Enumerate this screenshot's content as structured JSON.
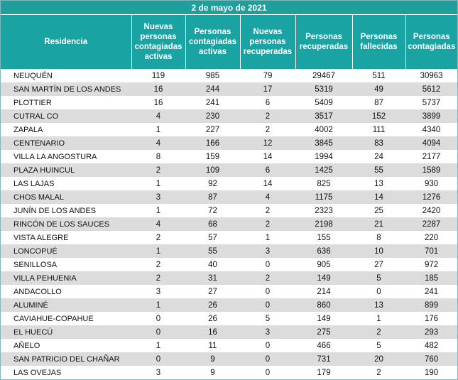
{
  "table": {
    "title": "2 de mayo de 2021",
    "columns": [
      "Residencia",
      "Nuevas personas contagiadas activas",
      "Personas contagiadas activas",
      "Nuevas personas recuperadas",
      "Personas recuperadas",
      "Personas fallecidas",
      "Personas contagiadas"
    ],
    "rows": [
      [
        "NEUQUÉN",
        119,
        985,
        79,
        29467,
        511,
        30963
      ],
      [
        "SAN MARTÍN DE LOS ANDES",
        16,
        244,
        17,
        5319,
        49,
        5612
      ],
      [
        "PLOTTIER",
        16,
        241,
        6,
        5409,
        87,
        5737
      ],
      [
        "CUTRAL CO",
        4,
        230,
        2,
        3517,
        152,
        3899
      ],
      [
        "ZAPALA",
        1,
        227,
        2,
        4002,
        111,
        4340
      ],
      [
        "CENTENARIO",
        4,
        166,
        12,
        3845,
        83,
        4094
      ],
      [
        "VILLA LA ANGOSTURA",
        8,
        159,
        14,
        1994,
        24,
        2177
      ],
      [
        "PLAZA HUINCUL",
        2,
        109,
        6,
        1425,
        55,
        1589
      ],
      [
        "LAS LAJAS",
        1,
        92,
        14,
        825,
        13,
        930
      ],
      [
        "CHOS MALAL",
        3,
        87,
        4,
        1175,
        14,
        1276
      ],
      [
        "JUNÍN DE LOS ANDES",
        1,
        72,
        2,
        2323,
        25,
        2420
      ],
      [
        "RINCÓN DE LOS SAUCES",
        4,
        68,
        2,
        2198,
        21,
        2287
      ],
      [
        "VISTA ALEGRE",
        2,
        57,
        1,
        155,
        8,
        220
      ],
      [
        "LONCOPUÉ",
        1,
        55,
        3,
        636,
        10,
        701
      ],
      [
        "SENILLOSA",
        2,
        40,
        0,
        905,
        27,
        972
      ],
      [
        "VILLA PEHUENIA",
        2,
        31,
        2,
        149,
        5,
        185
      ],
      [
        "ANDACOLLO",
        3,
        27,
        0,
        214,
        0,
        241
      ],
      [
        "ALUMINÉ",
        1,
        26,
        0,
        860,
        13,
        899
      ],
      [
        "CAVIAHUE-COPAHUE",
        0,
        26,
        5,
        149,
        1,
        176
      ],
      [
        "EL HUECÚ",
        0,
        16,
        3,
        275,
        2,
        293
      ],
      [
        "AÑELO",
        1,
        11,
        0,
        466,
        5,
        482
      ],
      [
        "SAN PATRICIO DEL CHAÑAR",
        0,
        9,
        0,
        731,
        20,
        760
      ],
      [
        "LAS OVEJAS",
        3,
        9,
        0,
        179,
        2,
        190
      ]
    ]
  }
}
